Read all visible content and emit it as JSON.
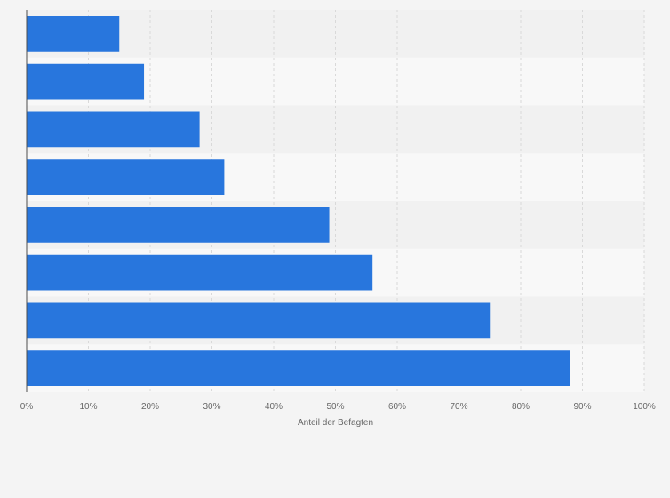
{
  "colors": {
    "page_background": "#f4f4f4",
    "band_dark": "#f1f1f1",
    "band_light": "#f8f8f8",
    "bar": "#2876dd",
    "grid": "#d9d9d9",
    "axis": "#4d4d4d",
    "text": "#666666"
  },
  "chart_data": {
    "type": "bar",
    "orientation": "horizontal",
    "categories": [
      "",
      "",
      "",
      "",
      "",
      "",
      "",
      ""
    ],
    "values": [
      15,
      19,
      28,
      32,
      49,
      56,
      75,
      88
    ],
    "xlabel": "Anteil der Befagten",
    "ylabel": "",
    "xlim": [
      0,
      100
    ],
    "x_ticks": [
      "0%",
      "10%",
      "20%",
      "30%",
      "40%",
      "50%",
      "60%",
      "70%",
      "80%",
      "90%",
      "100%"
    ],
    "grid": "vertical dashed",
    "legend": "none"
  }
}
